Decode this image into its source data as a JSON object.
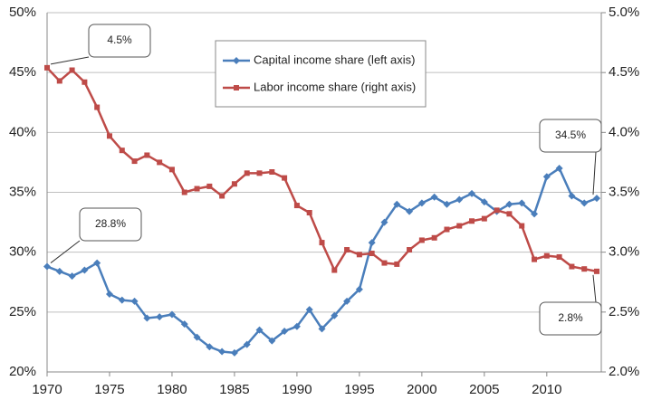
{
  "chart_data": {
    "type": "line",
    "x": [
      1970,
      1971,
      1972,
      1973,
      1974,
      1975,
      1976,
      1977,
      1978,
      1979,
      1980,
      1981,
      1982,
      1983,
      1984,
      1985,
      1986,
      1987,
      1988,
      1989,
      1990,
      1991,
      1992,
      1993,
      1994,
      1995,
      1996,
      1997,
      1998,
      1999,
      2000,
      2001,
      2002,
      2003,
      2004,
      2005,
      2006,
      2007,
      2008,
      2009,
      2010,
      2011,
      2012,
      2013,
      2014
    ],
    "series": [
      {
        "name": "Capital income share (left axis)",
        "color": "#4a7ebb",
        "marker": "diamond",
        "axis": "y",
        "values": [
          28.8,
          28.4,
          28.0,
          28.5,
          29.1,
          26.5,
          26.0,
          25.9,
          24.5,
          24.6,
          24.8,
          24.0,
          22.9,
          22.1,
          21.7,
          21.6,
          22.3,
          23.5,
          22.6,
          23.4,
          23.8,
          25.2,
          23.6,
          24.7,
          25.9,
          26.9,
          30.8,
          32.5,
          34.0,
          33.4,
          34.1,
          34.6,
          34.0,
          34.4,
          34.9,
          34.2,
          33.4,
          34.0,
          34.1,
          33.2,
          36.3,
          37.0,
          34.7,
          34.1,
          34.5
        ]
      },
      {
        "name": "Labor income share (right axis)",
        "color": "#be4b48",
        "marker": "square",
        "axis": "y2",
        "values": [
          4.54,
          4.43,
          4.52,
          4.42,
          4.21,
          3.97,
          3.85,
          3.76,
          3.81,
          3.75,
          3.69,
          3.5,
          3.53,
          3.55,
          3.47,
          3.57,
          3.66,
          3.66,
          3.67,
          3.62,
          3.39,
          3.33,
          3.08,
          2.85,
          3.02,
          2.98,
          2.99,
          2.91,
          2.9,
          3.02,
          3.1,
          3.12,
          3.19,
          3.22,
          3.26,
          3.28,
          3.35,
          3.32,
          3.22,
          2.94,
          2.97,
          2.96,
          2.88,
          2.86,
          2.84
        ]
      }
    ],
    "xlim": [
      1970,
      2014
    ],
    "xticks": [
      1970,
      1975,
      1980,
      1985,
      1990,
      1995,
      2000,
      2005,
      2010
    ],
    "ylim": [
      20,
      50
    ],
    "yticks": [
      {
        "value": 20,
        "label": "20%"
      },
      {
        "value": 25,
        "label": "25%"
      },
      {
        "value": 30,
        "label": "30%"
      },
      {
        "value": 35,
        "label": "35%"
      },
      {
        "value": 40,
        "label": "40%"
      },
      {
        "value": 45,
        "label": "45%"
      },
      {
        "value": 50,
        "label": "50%"
      }
    ],
    "y2lim": [
      2,
      5
    ],
    "y2ticks": [
      {
        "value": 2,
        "label": "2.0%"
      },
      {
        "value": 2.5,
        "label": "2.5%"
      },
      {
        "value": 3,
        "label": "3.0%"
      },
      {
        "value": 3.5,
        "label": "3.5%"
      },
      {
        "value": 4,
        "label": "4.0%"
      },
      {
        "value": 4.5,
        "label": "4.5%"
      },
      {
        "value": 5,
        "label": "5.0%"
      }
    ],
    "grid": true,
    "legend": "upper center",
    "annotations": [
      {
        "text": "4.5%"
      },
      {
        "text": "28.8%"
      },
      {
        "text": "34.5%"
      },
      {
        "text": "2.8%"
      }
    ]
  }
}
